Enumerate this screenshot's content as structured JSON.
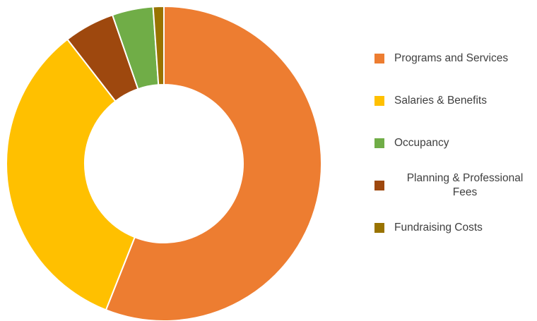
{
  "chart_data": {
    "type": "pie",
    "categories": [
      "Programs and Services",
      "Salaries & Benefits",
      "Occupancy",
      "Planning & Professional Fees",
      "Fundraising Costs"
    ],
    "values": [
      56,
      33.5,
      4.2,
      5.2,
      1.1
    ],
    "colors": [
      "#ED7D31",
      "#FFC000",
      "#70AD47",
      "#9E480E",
      "#997300"
    ],
    "donut": true,
    "legend_position": "right",
    "title": ""
  },
  "legend": {
    "items": [
      {
        "label": "Programs and Services",
        "color": "#ED7D31"
      },
      {
        "label": "Salaries & Benefits",
        "color": "#FFC000"
      },
      {
        "label": "Occupancy",
        "color": "#70AD47"
      },
      {
        "label": "Planning & Professional Fees",
        "color": "#9E480E"
      },
      {
        "label": "Fundraising Costs",
        "color": "#997300"
      }
    ]
  }
}
